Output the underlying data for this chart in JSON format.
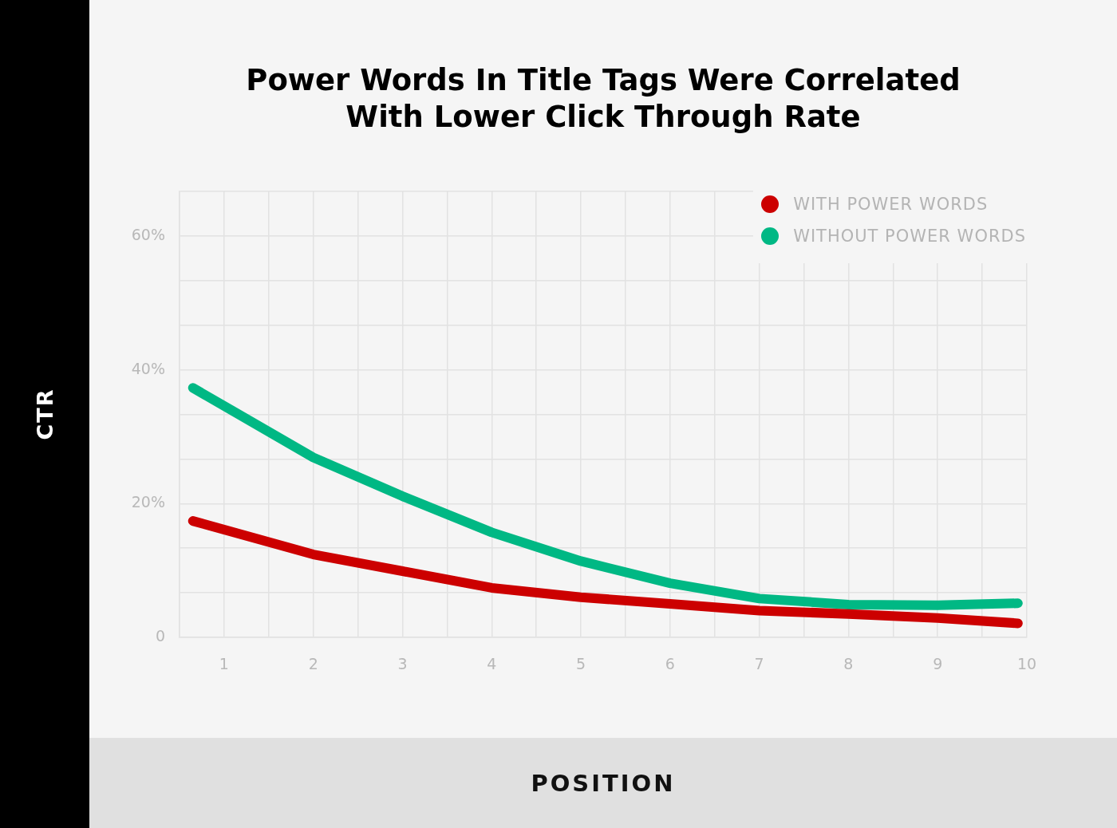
{
  "chart_data": {
    "type": "line",
    "title": "Power Words In Title Tags Were Correlated\nWith Lower Click Through Rate",
    "xlabel": "POSITION",
    "ylabel": "CTR",
    "xlim": [
      0.5,
      10
    ],
    "xticks": [
      {
        "value": 0.5,
        "label": null
      },
      1,
      {
        "value": 1.5,
        "label": null
      },
      2,
      {
        "value": 2.5,
        "label": null
      },
      3,
      {
        "value": 3.5,
        "label": null
      },
      4,
      {
        "value": 4.5,
        "label": null
      },
      5,
      {
        "value": 5.5,
        "label": null
      },
      6,
      {
        "value": 6.5,
        "label": null
      },
      7,
      {
        "value": 7.5,
        "label": null
      },
      8,
      {
        "value": 8.5,
        "label": null
      },
      9,
      {
        "value": 9.5,
        "label": null
      },
      10
    ],
    "ylim": [
      0,
      66.67
    ],
    "yticks": [
      {
        "value": 0,
        "label": "0"
      },
      {
        "value": 6.67,
        "label": null
      },
      {
        "value": 13.33,
        "label": null
      },
      {
        "value": 20,
        "label": "20%"
      },
      {
        "value": 26.67,
        "label": null
      },
      {
        "value": 33.33,
        "label": null
      },
      {
        "value": 40,
        "label": "40%"
      },
      {
        "value": 46.67,
        "label": null
      },
      {
        "value": 53.33,
        "label": null
      },
      {
        "value": 60,
        "label": "60%"
      },
      {
        "value": 66.67,
        "label": null
      }
    ],
    "x": [
      0.65,
      2,
      3,
      4,
      5,
      6,
      7,
      8,
      9,
      9.9
    ],
    "series": [
      {
        "name": "WITH POWER WORDS",
        "color": "#cc0000",
        "values": [
          17.4,
          12.4,
          9.9,
          7.4,
          6.0,
          5.0,
          4.0,
          3.5,
          2.9,
          2.1
        ]
      },
      {
        "name": "WITHOUT POWER WORDS",
        "color": "#00b884",
        "values": [
          37.3,
          26.9,
          21.1,
          15.7,
          11.4,
          8.1,
          5.8,
          4.9,
          4.8,
          5.1
        ]
      }
    ],
    "grid": true,
    "legend": "top right",
    "marker": "none",
    "line_style": "solid"
  }
}
